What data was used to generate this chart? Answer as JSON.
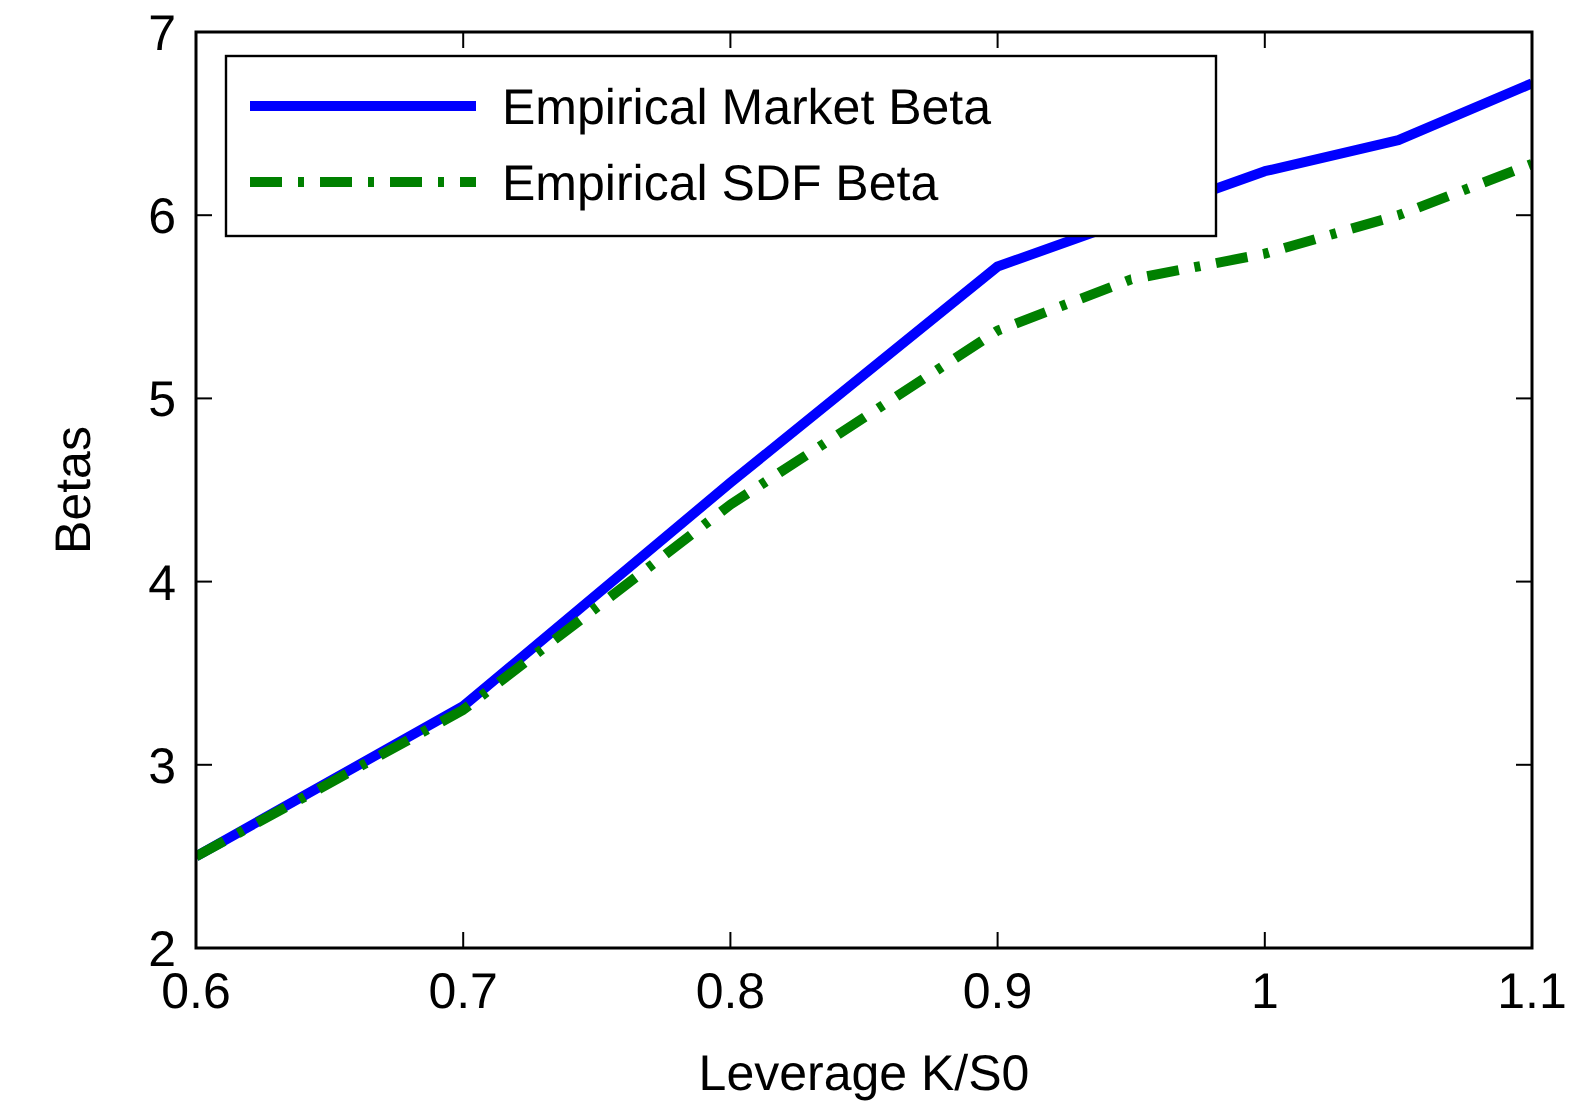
{
  "chart_data": {
    "type": "line",
    "xlabel": "Leverage K/S0",
    "ylabel": "Betas",
    "x": [
      0.6,
      0.7,
      0.8,
      0.9,
      0.95,
      1.0,
      1.05,
      1.1
    ],
    "series": [
      {
        "name": "Empirical Market Beta",
        "color": "#0000ff",
        "x": [
          0.6,
          0.7,
          0.8,
          0.9,
          1.0,
          1.05,
          1.1
        ],
        "values": [
          2.5,
          3.32,
          4.54,
          5.72,
          6.24,
          6.41,
          6.72
        ],
        "line_style": "solid"
      },
      {
        "name": "Empirical SDF Beta",
        "color": "#008000",
        "values": [
          2.5,
          3.3,
          4.42,
          5.37,
          5.65,
          5.79,
          6.0,
          6.28
        ],
        "line_style": "dashdot"
      }
    ],
    "xlim": [
      0.6,
      1.1
    ],
    "xticks": [
      0.6,
      0.7,
      0.8,
      0.9,
      1,
      1.1
    ],
    "ylim": [
      2,
      7
    ],
    "yticks": [
      2,
      3,
      4,
      5,
      6,
      7
    ],
    "legend": "top left",
    "grid": false
  }
}
